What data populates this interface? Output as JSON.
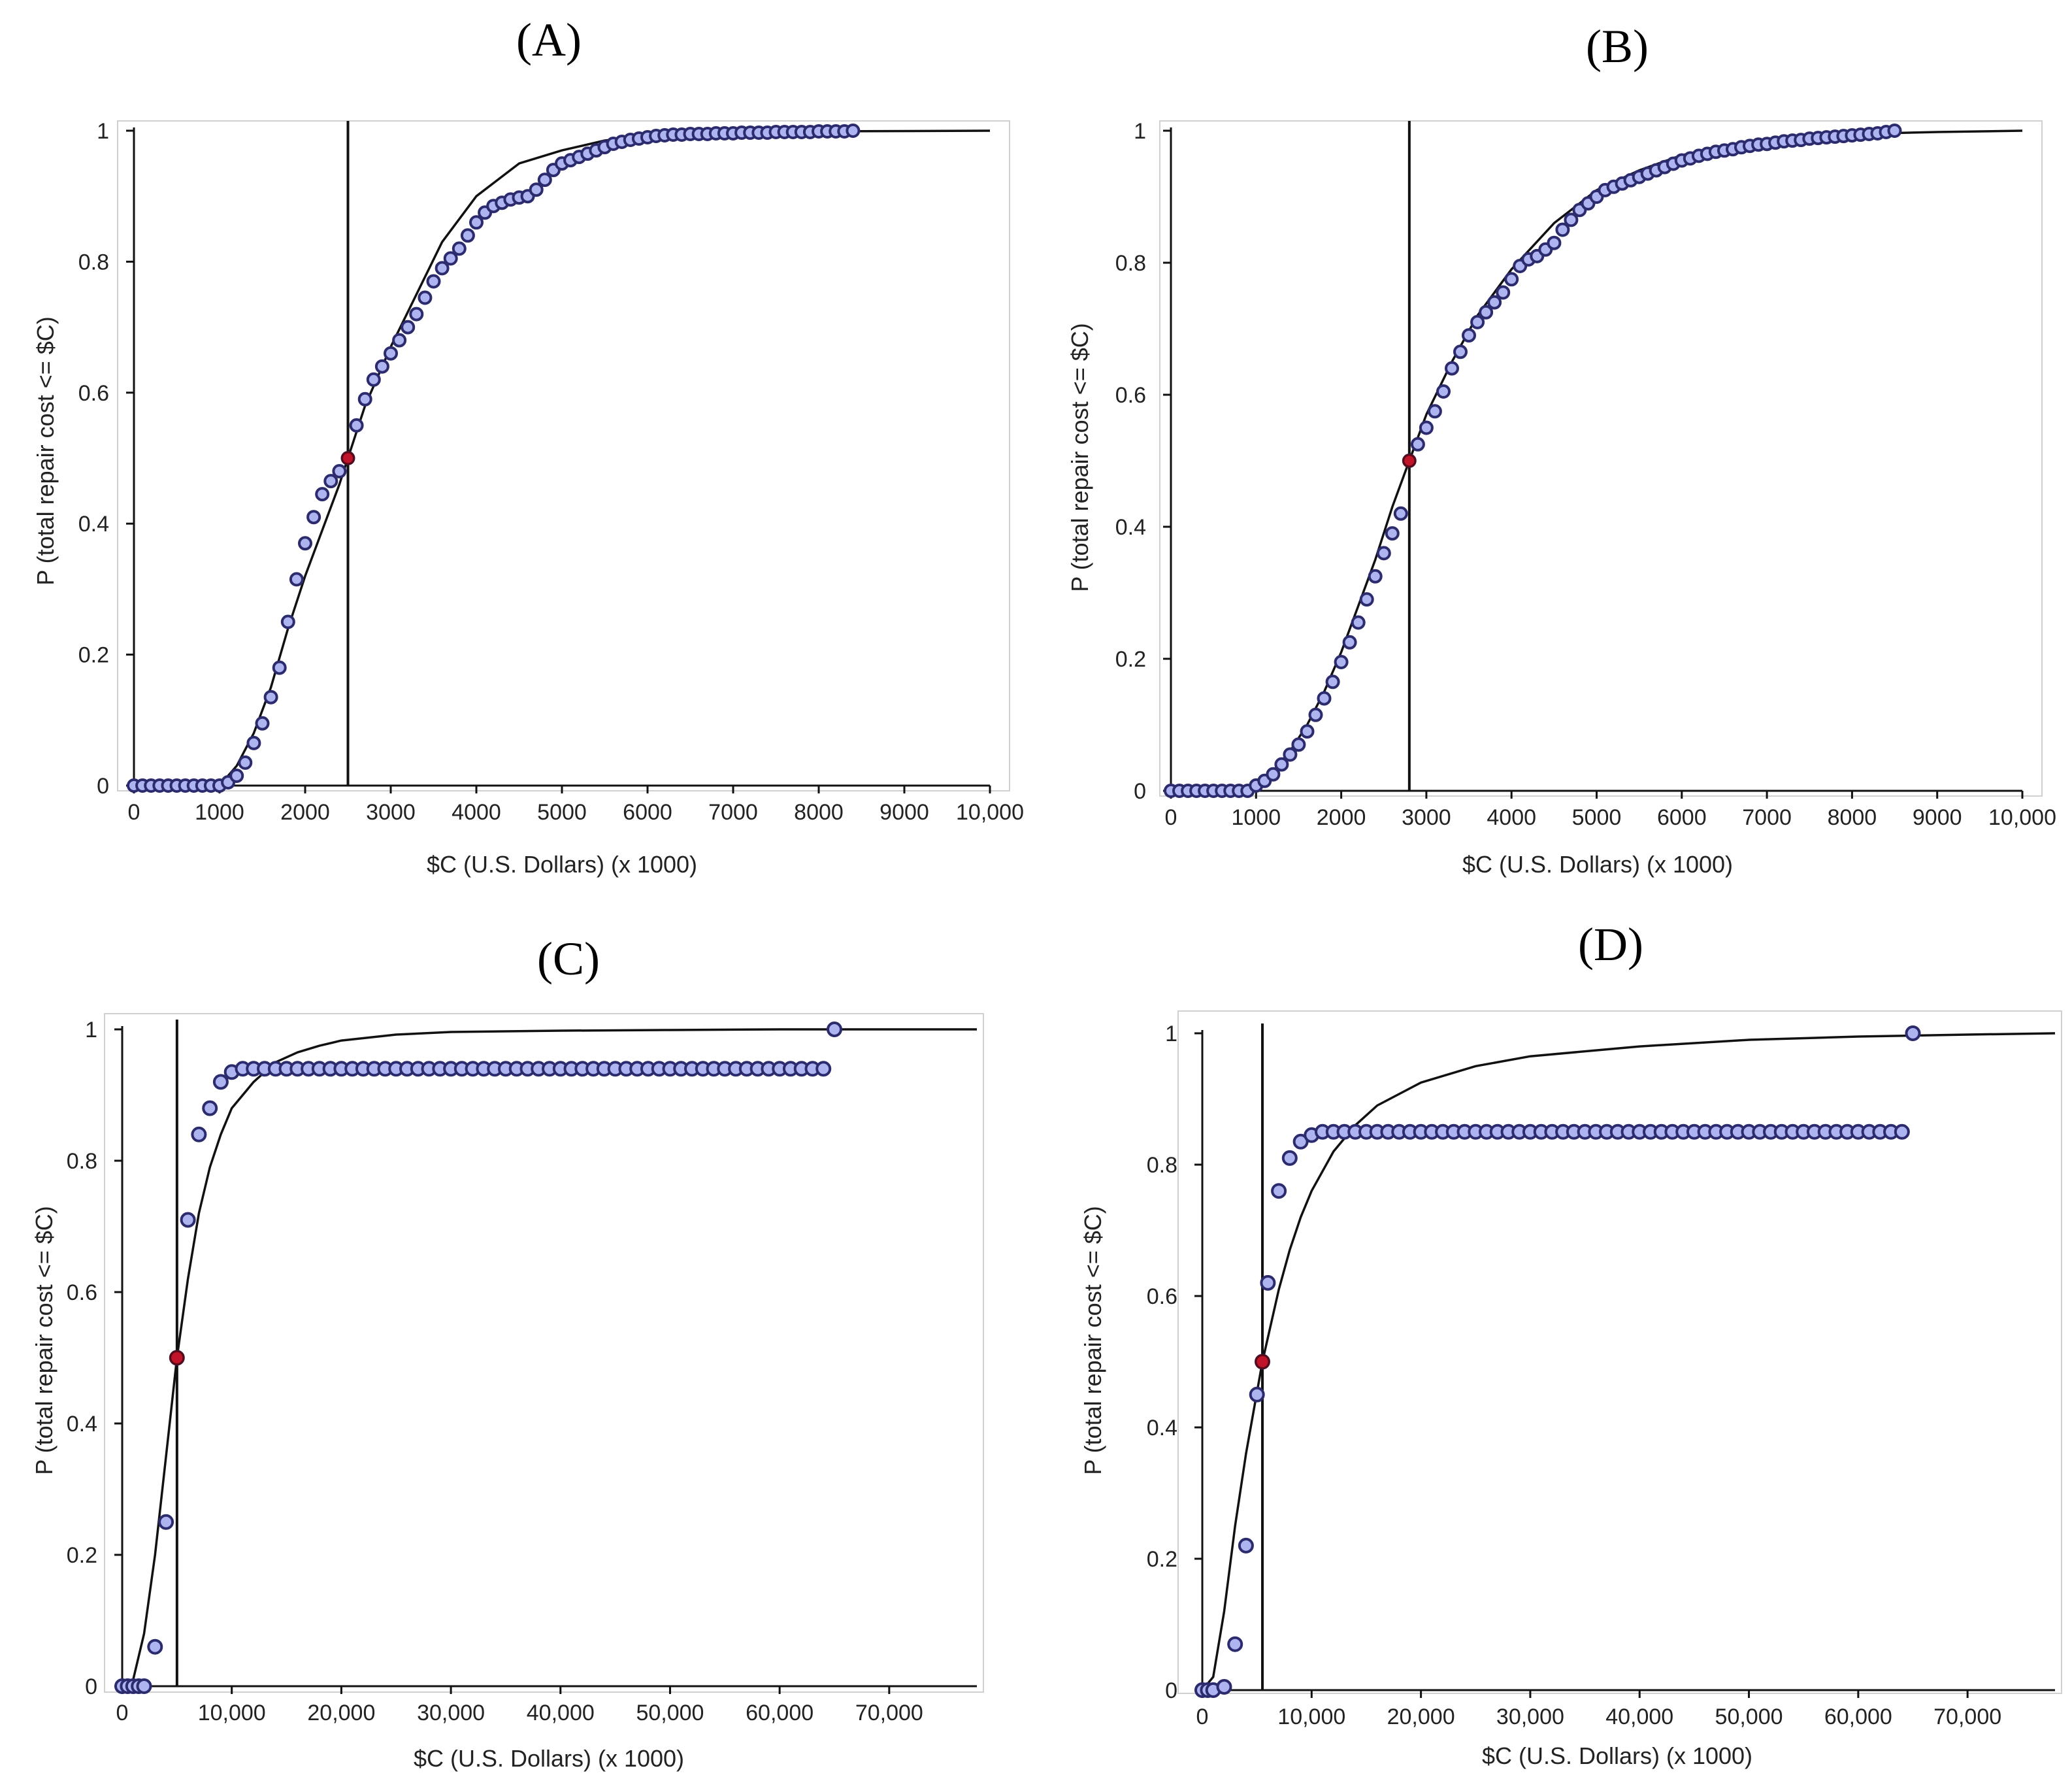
{
  "figure": {
    "colors": {
      "point_fill": "#aeb4f0",
      "point_stroke": "#2b2b6e",
      "median_fill": "#c0142a",
      "curve": "#111111",
      "axis": "#111111",
      "frame": "#d0d0d0"
    }
  },
  "chart_data": [
    {
      "id": "A",
      "type": "scatter",
      "title": "(A)",
      "xlabel": "$C (U.S. Dollars) (x 1000)",
      "ylabel": "P (total repair cost <= $C)",
      "xlim": [
        0,
        10000
      ],
      "ylim": [
        0,
        1
      ],
      "grid": false,
      "xticks": [
        0,
        1000,
        2000,
        3000,
        4000,
        5000,
        6000,
        7000,
        8000,
        9000,
        10000
      ],
      "xtick_labels": [
        "0",
        "1000",
        "2000",
        "3000",
        "4000",
        "5000",
        "6000",
        "7000",
        "8000",
        "9000",
        "10,000"
      ],
      "yticks": [
        0,
        0.2,
        0.4,
        0.6,
        0.8,
        1
      ],
      "ytick_labels": [
        "0",
        "0.2",
        "0.4",
        "0.6",
        "0.8",
        "1"
      ],
      "median_line_x": 2500,
      "median_point": {
        "x": 2500,
        "y": 0.5
      },
      "fitted_curve": {
        "x": [
          0,
          1000,
          1200,
          1400,
          1600,
          1800,
          2000,
          2200,
          2400,
          2500,
          2700,
          3000,
          3300,
          3600,
          4000,
          4500,
          5000,
          5500,
          6000,
          7000,
          8000,
          10000
        ],
        "y": [
          0,
          0,
          0.03,
          0.08,
          0.15,
          0.24,
          0.32,
          0.39,
          0.46,
          0.5,
          0.58,
          0.67,
          0.75,
          0.83,
          0.9,
          0.95,
          0.97,
          0.985,
          0.992,
          0.997,
          0.999,
          1.0
        ]
      },
      "points": {
        "x": [
          0,
          100,
          200,
          300,
          400,
          500,
          600,
          700,
          800,
          900,
          1000,
          1100,
          1200,
          1300,
          1400,
          1500,
          1600,
          1700,
          1800,
          1900,
          2000,
          2100,
          2200,
          2300,
          2400,
          2500,
          2600,
          2700,
          2800,
          2900,
          3000,
          3100,
          3200,
          3300,
          3400,
          3500,
          3600,
          3700,
          3800,
          3900,
          4000,
          4100,
          4200,
          4300,
          4400,
          4500,
          4600,
          4700,
          4800,
          4900,
          5000,
          5100,
          5200,
          5300,
          5400,
          5500,
          5600,
          5700,
          5800,
          5900,
          6000,
          6100,
          6200,
          6300,
          6400,
          6500,
          6600,
          6700,
          6800,
          6900,
          7000,
          7100,
          7200,
          7300,
          7400,
          7500,
          7600,
          7700,
          7800,
          7900,
          8000,
          8100,
          8200,
          8300,
          8400
        ],
        "y": [
          0,
          0,
          0,
          0,
          0,
          0,
          0,
          0,
          0,
          0,
          0,
          0.005,
          0.015,
          0.035,
          0.065,
          0.095,
          0.135,
          0.18,
          0.25,
          0.315,
          0.37,
          0.41,
          0.445,
          0.465,
          0.48,
          0.5,
          0.55,
          0.59,
          0.62,
          0.64,
          0.66,
          0.68,
          0.7,
          0.72,
          0.745,
          0.77,
          0.79,
          0.805,
          0.82,
          0.84,
          0.86,
          0.875,
          0.885,
          0.89,
          0.895,
          0.898,
          0.9,
          0.91,
          0.925,
          0.94,
          0.95,
          0.955,
          0.96,
          0.965,
          0.97,
          0.975,
          0.98,
          0.983,
          0.986,
          0.988,
          0.99,
          0.992,
          0.993,
          0.994,
          0.994,
          0.995,
          0.995,
          0.995,
          0.996,
          0.996,
          0.996,
          0.997,
          0.997,
          0.997,
          0.997,
          0.998,
          0.998,
          0.998,
          0.998,
          0.998,
          0.999,
          0.999,
          0.999,
          0.999,
          1.0
        ]
      }
    },
    {
      "id": "B",
      "type": "scatter",
      "title": "(B)",
      "xlabel": "$C (U.S. Dollars) (x 1000)",
      "ylabel": "P (total repair cost <= $C)",
      "xlim": [
        0,
        10000
      ],
      "ylim": [
        0,
        1
      ],
      "grid": false,
      "xticks": [
        0,
        1000,
        2000,
        3000,
        4000,
        5000,
        6000,
        7000,
        8000,
        9000,
        10000
      ],
      "xtick_labels": [
        "0",
        "1000",
        "2000",
        "3000",
        "4000",
        "5000",
        "6000",
        "7000",
        "8000",
        "9000",
        "10,000"
      ],
      "yticks": [
        0,
        0.2,
        0.4,
        0.6,
        0.8,
        1
      ],
      "ytick_labels": [
        "0",
        "0.2",
        "0.4",
        "0.6",
        "0.8",
        "1"
      ],
      "median_line_x": 2800,
      "median_point": {
        "x": 2800,
        "y": 0.5
      },
      "fitted_curve": {
        "x": [
          0,
          800,
          1000,
          1200,
          1400,
          1600,
          1800,
          2000,
          2200,
          2400,
          2600,
          2800,
          3000,
          3300,
          3600,
          4000,
          4500,
          5000,
          5500,
          6000,
          6500,
          7000,
          8000,
          9000,
          10000
        ],
        "y": [
          0,
          0,
          0.01,
          0.03,
          0.06,
          0.1,
          0.15,
          0.21,
          0.28,
          0.35,
          0.43,
          0.5,
          0.57,
          0.65,
          0.72,
          0.79,
          0.86,
          0.91,
          0.94,
          0.963,
          0.977,
          0.986,
          0.995,
          0.998,
          1.0
        ]
      },
      "points": {
        "x": [
          0,
          100,
          200,
          300,
          400,
          500,
          600,
          700,
          800,
          900,
          1000,
          1100,
          1200,
          1300,
          1400,
          1500,
          1600,
          1700,
          1800,
          1900,
          2000,
          2100,
          2200,
          2300,
          2400,
          2500,
          2600,
          2700,
          2800,
          2900,
          3000,
          3100,
          3200,
          3300,
          3400,
          3500,
          3600,
          3700,
          3800,
          3900,
          4000,
          4100,
          4200,
          4300,
          4400,
          4500,
          4600,
          4700,
          4800,
          4900,
          5000,
          5100,
          5200,
          5300,
          5400,
          5500,
          5600,
          5700,
          5800,
          5900,
          6000,
          6100,
          6200,
          6300,
          6400,
          6500,
          6600,
          6700,
          6800,
          6900,
          7000,
          7100,
          7200,
          7300,
          7400,
          7500,
          7600,
          7700,
          7800,
          7900,
          8000,
          8100,
          8200,
          8300,
          8400,
          8500
        ],
        "y": [
          0,
          0,
          0,
          0,
          0,
          0,
          0,
          0,
          0,
          0,
          0.008,
          0.015,
          0.025,
          0.04,
          0.055,
          0.07,
          0.09,
          0.115,
          0.14,
          0.165,
          0.195,
          0.225,
          0.255,
          0.29,
          0.325,
          0.36,
          0.39,
          0.42,
          0.5,
          0.525,
          0.55,
          0.575,
          0.605,
          0.64,
          0.665,
          0.69,
          0.71,
          0.725,
          0.74,
          0.755,
          0.775,
          0.795,
          0.805,
          0.81,
          0.82,
          0.83,
          0.85,
          0.865,
          0.88,
          0.89,
          0.9,
          0.91,
          0.915,
          0.92,
          0.925,
          0.93,
          0.935,
          0.94,
          0.945,
          0.95,
          0.955,
          0.958,
          0.962,
          0.965,
          0.968,
          0.97,
          0.972,
          0.975,
          0.977,
          0.979,
          0.98,
          0.982,
          0.984,
          0.985,
          0.986,
          0.988,
          0.989,
          0.99,
          0.991,
          0.992,
          0.993,
          0.994,
          0.995,
          0.996,
          0.998,
          1.0
        ]
      }
    },
    {
      "id": "C",
      "type": "scatter",
      "title": "(C)",
      "xlabel": "$C (U.S. Dollars) (x 1000)",
      "ylabel": "P (total repair cost <= $C)",
      "xlim": [
        0,
        78000
      ],
      "ylim": [
        0,
        1
      ],
      "grid": false,
      "xticks": [
        0,
        10000,
        20000,
        30000,
        40000,
        50000,
        60000,
        70000
      ],
      "xtick_labels": [
        "0",
        "10,000",
        "20,000",
        "30,000",
        "40,000",
        "50,000",
        "60,000",
        "70,000"
      ],
      "yticks": [
        0,
        0.2,
        0.4,
        0.6,
        0.8,
        1
      ],
      "ytick_labels": [
        "0",
        "0.2",
        "0.4",
        "0.6",
        "0.8",
        "1"
      ],
      "median_line_x": 5000,
      "median_point": {
        "x": 5000,
        "y": 0.5
      },
      "fitted_curve": {
        "x": [
          0,
          1000,
          2000,
          3000,
          4000,
          5000,
          6000,
          7000,
          8000,
          9000,
          10000,
          12000,
          14000,
          16000,
          18000,
          20000,
          25000,
          30000,
          40000,
          50000,
          60000,
          70000,
          78000
        ],
        "y": [
          0,
          0.01,
          0.08,
          0.2,
          0.35,
          0.5,
          0.62,
          0.72,
          0.79,
          0.84,
          0.88,
          0.92,
          0.95,
          0.965,
          0.975,
          0.983,
          0.992,
          0.996,
          0.998,
          0.999,
          1.0,
          1.0,
          1.0
        ]
      },
      "points": {
        "x": [
          0,
          500,
          1000,
          1500,
          2000,
          3000,
          4000,
          5000,
          6000,
          7000,
          8000,
          9000,
          10000,
          11000,
          12000,
          13000,
          14000,
          15000,
          16000,
          17000,
          18000,
          19000,
          20000,
          21000,
          22000,
          23000,
          24000,
          25000,
          26000,
          27000,
          28000,
          29000,
          30000,
          31000,
          32000,
          33000,
          34000,
          35000,
          36000,
          37000,
          38000,
          39000,
          40000,
          41000,
          42000,
          43000,
          44000,
          45000,
          46000,
          47000,
          48000,
          49000,
          50000,
          51000,
          52000,
          53000,
          54000,
          55000,
          56000,
          57000,
          58000,
          59000,
          60000,
          61000,
          62000,
          63000,
          64000,
          65000
        ],
        "y": [
          0,
          0,
          0,
          0,
          0,
          0.06,
          0.25,
          0.5,
          0.71,
          0.84,
          0.88,
          0.92,
          0.935,
          0.94,
          0.94,
          0.94,
          0.94,
          0.94,
          0.94,
          0.94,
          0.94,
          0.94,
          0.94,
          0.94,
          0.94,
          0.94,
          0.94,
          0.94,
          0.94,
          0.94,
          0.94,
          0.94,
          0.94,
          0.94,
          0.94,
          0.94,
          0.94,
          0.94,
          0.94,
          0.94,
          0.94,
          0.94,
          0.94,
          0.94,
          0.94,
          0.94,
          0.94,
          0.94,
          0.94,
          0.94,
          0.94,
          0.94,
          0.94,
          0.94,
          0.94,
          0.94,
          0.94,
          0.94,
          0.94,
          0.94,
          0.94,
          0.94,
          0.94,
          0.94,
          0.94,
          0.94,
          0.94,
          1.0
        ]
      }
    },
    {
      "id": "D",
      "type": "scatter",
      "title": "(D)",
      "xlabel": "$C (U.S. Dollars) (x 1000)",
      "ylabel": "P (total repair cost <= $C)",
      "xlim": [
        0,
        78000
      ],
      "ylim": [
        0,
        1
      ],
      "grid": false,
      "xticks": [
        0,
        10000,
        20000,
        30000,
        40000,
        50000,
        60000,
        70000
      ],
      "xtick_labels": [
        "0",
        "10,000",
        "20,000",
        "30,000",
        "40,000",
        "50,000",
        "60,000",
        "70,000"
      ],
      "yticks": [
        0,
        0.2,
        0.4,
        0.6,
        0.8,
        1
      ],
      "ytick_labels": [
        "0",
        "0.2",
        "0.4",
        "0.6",
        "0.8",
        "1"
      ],
      "median_line_x": 5500,
      "median_point": {
        "x": 5500,
        "y": 0.5
      },
      "fitted_curve": {
        "x": [
          0,
          1000,
          2000,
          3000,
          4000,
          5500,
          7000,
          8000,
          9000,
          10000,
          12000,
          14000,
          16000,
          20000,
          25000,
          30000,
          40000,
          50000,
          60000,
          70000,
          78000
        ],
        "y": [
          0,
          0.02,
          0.12,
          0.25,
          0.36,
          0.5,
          0.61,
          0.67,
          0.72,
          0.76,
          0.82,
          0.86,
          0.89,
          0.925,
          0.95,
          0.965,
          0.98,
          0.99,
          0.995,
          0.998,
          1.0
        ]
      },
      "points": {
        "x": [
          0,
          500,
          1000,
          2000,
          3000,
          4000,
          5000,
          5500,
          6000,
          7000,
          8000,
          9000,
          10000,
          11000,
          12000,
          13000,
          14000,
          15000,
          16000,
          17000,
          18000,
          19000,
          20000,
          21000,
          22000,
          23000,
          24000,
          25000,
          26000,
          27000,
          28000,
          29000,
          30000,
          31000,
          32000,
          33000,
          34000,
          35000,
          36000,
          37000,
          38000,
          39000,
          40000,
          41000,
          42000,
          43000,
          44000,
          45000,
          46000,
          47000,
          48000,
          49000,
          50000,
          51000,
          52000,
          53000,
          54000,
          55000,
          56000,
          57000,
          58000,
          59000,
          60000,
          61000,
          62000,
          63000,
          64000,
          65000
        ],
        "y": [
          0,
          0,
          0,
          0.005,
          0.07,
          0.22,
          0.45,
          0.5,
          0.62,
          0.76,
          0.81,
          0.835,
          0.845,
          0.85,
          0.85,
          0.85,
          0.85,
          0.85,
          0.85,
          0.85,
          0.85,
          0.85,
          0.85,
          0.85,
          0.85,
          0.85,
          0.85,
          0.85,
          0.85,
          0.85,
          0.85,
          0.85,
          0.85,
          0.85,
          0.85,
          0.85,
          0.85,
          0.85,
          0.85,
          0.85,
          0.85,
          0.85,
          0.85,
          0.85,
          0.85,
          0.85,
          0.85,
          0.85,
          0.85,
          0.85,
          0.85,
          0.85,
          0.85,
          0.85,
          0.85,
          0.85,
          0.85,
          0.85,
          0.85,
          0.85,
          0.85,
          0.85,
          0.85,
          0.85,
          0.85,
          0.85,
          0.85,
          1.0
        ]
      }
    }
  ]
}
